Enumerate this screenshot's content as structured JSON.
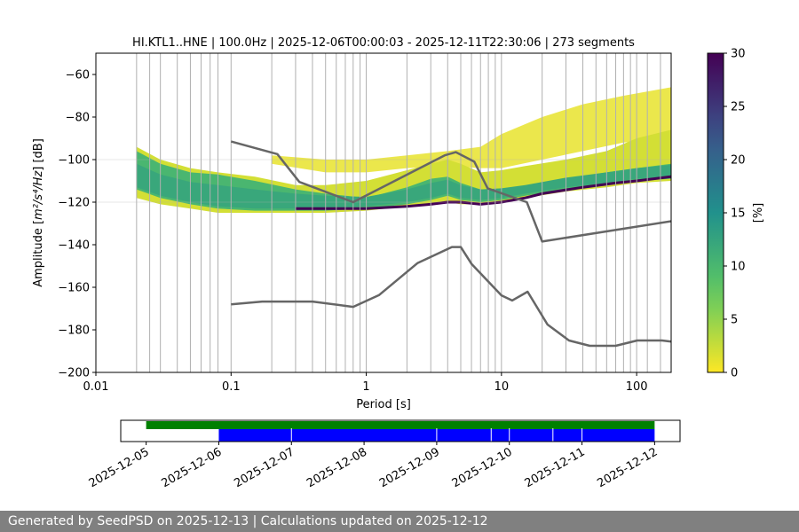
{
  "chart_data": [
    {
      "type": "heatmap",
      "title": "HI.KTL1..HNE | 100.0Hz | 2025-12-06T00:00:03 - 2025-12-11T22:30:06 | 273 segments",
      "xlabel": "Period [s]",
      "ylabel_prefix": "Amplitude [",
      "ylabel_math": "m²/s⁴/Hz",
      "ylabel_suffix": "] [dB]",
      "x_scale": "log",
      "xlim": [
        0.01,
        180
      ],
      "ylim": [
        -200,
        -50
      ],
      "x_ticks": [
        {
          "value": 0.01,
          "label": "0.01"
        },
        {
          "value": 0.1,
          "label": "0.1"
        },
        {
          "value": 1,
          "label": "1"
        },
        {
          "value": 10,
          "label": "10"
        },
        {
          "value": 100,
          "label": "100"
        }
      ],
      "y_ticks": [
        {
          "value": -60,
          "label": "−60"
        },
        {
          "value": -80,
          "label": "−80"
        },
        {
          "value": -100,
          "label": "−100"
        },
        {
          "value": -120,
          "label": "−120"
        },
        {
          "value": -140,
          "label": "−140"
        },
        {
          "value": -160,
          "label": "−160"
        },
        {
          "value": -180,
          "label": "−180"
        },
        {
          "value": -200,
          "label": "−200"
        }
      ],
      "grid": "vertical lines at periods",
      "grid_lines_period": [
        0.02,
        0.025,
        0.03,
        0.04,
        0.05,
        0.06,
        0.07,
        0.08,
        0.1,
        0.2,
        0.3,
        0.4,
        0.5,
        0.6,
        0.7,
        0.8,
        0.9,
        1,
        2,
        3,
        4,
        5,
        6,
        7,
        8,
        9,
        10,
        20,
        30,
        40,
        50,
        60,
        70,
        80,
        90,
        100,
        120,
        150
      ],
      "horizontal_grid_db": [
        -100,
        -120
      ],
      "density_bands": [
        {
          "period": [
            0.02,
            0.03,
            0.05,
            0.08,
            0.15,
            0.3,
            0.5,
            1,
            2,
            3,
            4,
            5,
            7,
            10,
            15,
            30,
            60,
            100,
            180
          ],
          "low": [
            -114,
            -118,
            -121,
            -123,
            -124,
            -124,
            -124,
            -123,
            -121,
            -119,
            -117,
            -119,
            -120,
            -119,
            -117,
            -114,
            -112,
            -110,
            -109
          ],
          "high": [
            -96,
            -102,
            -106,
            -107,
            -110,
            -114,
            -116,
            -118,
            -113,
            -109,
            -108,
            -111,
            -114,
            -114,
            -113,
            -109,
            -106,
            -104,
            -102
          ],
          "level": 10
        },
        {
          "period": [
            0.02,
            0.03,
            0.05,
            0.08,
            0.15,
            0.3,
            0.5,
            1,
            2,
            3,
            4,
            5,
            7,
            10,
            15,
            30,
            60,
            100,
            180
          ],
          "low": [
            -118,
            -121,
            -123,
            -125,
            -125,
            -125,
            -125,
            -124,
            -122,
            -121,
            -120,
            -121,
            -121,
            -120,
            -118,
            -115,
            -113,
            -111,
            -110
          ],
          "high": [
            -94,
            -100,
            -104,
            -106,
            -108,
            -112,
            -112,
            -110,
            -105,
            -102,
            -100,
            -102,
            -106,
            -105,
            -103,
            -100,
            -96,
            -90,
            -86
          ],
          "level": 2
        }
      ],
      "mode_line": {
        "period": [
          0.3,
          0.5,
          1,
          2,
          3,
          4,
          5,
          7,
          10,
          15,
          20,
          40,
          70,
          100,
          180
        ],
        "db": [
          -123,
          -123,
          -123,
          -122,
          -121,
          -120,
          -120,
          -121,
          -120,
          -118,
          -116,
          -113,
          -111,
          -110,
          -108
        ]
      },
      "outlier_band": {
        "period": [
          0.2,
          0.5,
          1,
          2,
          4,
          7,
          10,
          20,
          40,
          80,
          180
        ],
        "low": [
          -102,
          -106,
          -106,
          -104,
          -103,
          -104,
          -104,
          -100,
          -96,
          -92,
          -90
        ],
        "high": [
          -98,
          -100,
          -100,
          -98,
          -96,
          -94,
          -88,
          -80,
          -74,
          -70,
          -66
        ]
      },
      "nhnm": {
        "period": [
          0.1,
          0.22,
          0.32,
          0.8,
          3.8,
          4.6,
          6.3,
          7.9,
          15.4,
          20,
          354.8
        ],
        "db": [
          -91.5,
          -97.4,
          -110.5,
          -120,
          -98,
          -96.5,
          -101,
          -113.5,
          -120,
          -138.5,
          -126
        ]
      },
      "nlnm": {
        "period": [
          0.1,
          0.17,
          0.4,
          0.8,
          1.24,
          2.4,
          4.3,
          5,
          6,
          10,
          12,
          15.6,
          21.9,
          31.6,
          45,
          70,
          101,
          154,
          180
        ],
        "db": [
          -168,
          -166.7,
          -166.7,
          -169.2,
          -163.7,
          -148.6,
          -141.1,
          -141.1,
          -149,
          -163.8,
          -166.2,
          -162.1,
          -177.5,
          -185,
          -187.5,
          -187.5,
          -185,
          -185,
          -185.5
        ]
      },
      "colorbar": {
        "label": "[%]",
        "min": 0,
        "max": 30,
        "ticks": [
          "0",
          "5",
          "10",
          "15",
          "20",
          "25",
          "30"
        ],
        "colormap": "viridis_r"
      }
    },
    {
      "type": "timeline",
      "date_ticks": [
        "2025-12-05",
        "2025-12-06",
        "2025-12-07",
        "2025-12-08",
        "2025-12-09",
        "2025-12-10",
        "2025-12-11",
        "2025-12-12"
      ],
      "xlim_days": [
        -0.35,
        7.35
      ],
      "green_segment_days": [
        0,
        7
      ],
      "blue_segment_days": [
        1,
        7
      ],
      "blue_gap_days": [
        2.0,
        4.0,
        4.75,
        5.0,
        5.6,
        6.0
      ]
    }
  ],
  "footer": {
    "text": "Generated by SeedPSD on 2025-12-13 | Calculations updated on 2025-12-12"
  },
  "colors": {
    "background": "#ffffff",
    "footer_bg": "#808080",
    "model_line": "#666666",
    "timeline_green": "#008000",
    "timeline_blue": "#0000ff",
    "grid": "#b0b0b0"
  }
}
